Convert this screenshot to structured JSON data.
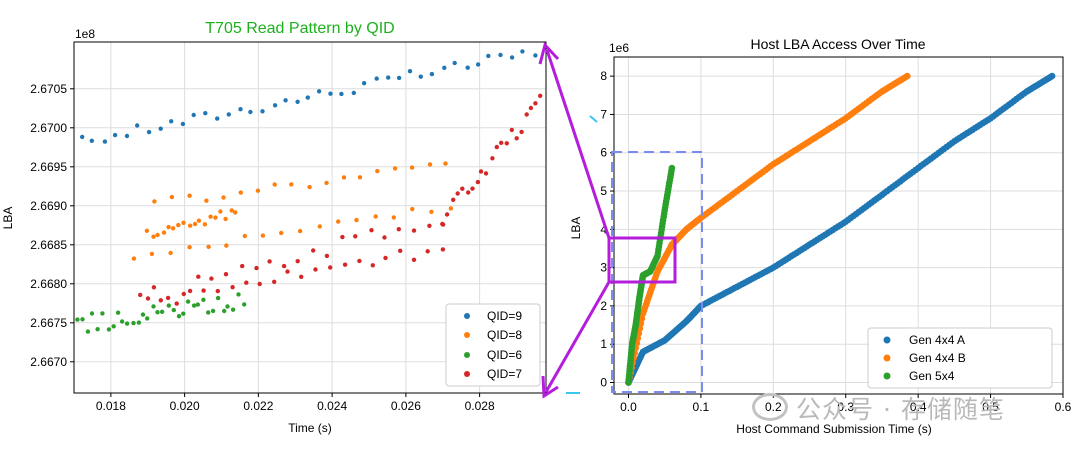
{
  "colors": {
    "blue": "#1f77b4",
    "orange": "#ff7f0e",
    "green": "#2ca02c",
    "red": "#d62728",
    "magenta": "#b51ddc",
    "dashed_box": "#7b8cf0",
    "left_title": "#1db11d"
  },
  "left_chart": {
    "type": "scatter",
    "title": "T705 Read Pattern by QID",
    "xlabel": "Time (s)",
    "ylabel": "LBA",
    "offset_label": "1e8",
    "xlim": [
      0.017,
      0.0298
    ],
    "ylim": [
      266.66,
      267.11
    ],
    "xticks": [
      0.018,
      0.02,
      0.022,
      0.024,
      0.026,
      0.028
    ],
    "xtick_labels": [
      "0.018",
      "0.020",
      "0.022",
      "0.024",
      "0.026",
      "0.028"
    ],
    "yticks": [
      266.7,
      266.75,
      266.8,
      266.85,
      266.9,
      266.95,
      267.0,
      267.05
    ],
    "ytick_labels": [
      "2.6670",
      "2.6675",
      "2.6680",
      "2.6685",
      "2.6690",
      "2.6695",
      "2.6700",
      "2.6705"
    ],
    "grid": true,
    "legend_position": "lower-right",
    "series": [
      {
        "name": "QID=9",
        "color": "blue",
        "segments": [
          [
            0.0172,
            266.982,
            0.0298,
            267.1
          ]
        ],
        "n": 42,
        "jitter": 0.0015
      },
      {
        "name": "QID=8",
        "color": "orange",
        "segments": [
          [
            0.019,
            266.864,
            0.0214,
            266.892
          ],
          [
            0.0192,
            266.903,
            0.0271,
            266.953
          ],
          [
            0.0186,
            266.835,
            0.0272,
            266.898
          ]
        ],
        "n": 18,
        "jitter": 0.0012
      },
      {
        "name": "QID=6",
        "color": "green",
        "segments": [
          [
            0.0171,
            266.748,
            0.0216,
            266.776
          ]
        ],
        "n": 34,
        "jitter": 0.0025
      },
      {
        "name": "QID=7",
        "color": "red",
        "segments": [
          [
            0.019,
            266.778,
            0.027,
            266.842
          ],
          [
            0.0188,
            266.782,
            0.027,
            266.885
          ],
          [
            0.027,
            266.885,
            0.0298,
            267.04
          ]
        ],
        "n": 22,
        "jitter": 0.002
      }
    ]
  },
  "right_chart": {
    "type": "scatter",
    "title": "Host LBA Access Over Time",
    "xlabel": "Host Command Submission Time (s)",
    "ylabel": "LBA",
    "offset_label": "1e6",
    "xlim": [
      -0.02,
      0.6
    ],
    "ylim": [
      -0.3,
      8.5
    ],
    "xticks": [
      0.0,
      0.1,
      0.2,
      0.3,
      0.4,
      0.5,
      0.6
    ],
    "xtick_labels": [
      "0.0",
      "0.1",
      "0.2",
      "0.3",
      "0.4",
      "0.5",
      "0.6"
    ],
    "yticks": [
      0,
      1,
      2,
      3,
      4,
      5,
      6,
      7,
      8
    ],
    "ytick_labels": [
      "0",
      "1",
      "2",
      "3",
      "4",
      "5",
      "6",
      "7",
      "8"
    ],
    "grid": true,
    "legend_position": "lower-right",
    "series": [
      {
        "name": "Gen 4x4 A",
        "color": "blue",
        "x": [
          0.0,
          0.02,
          0.05,
          0.08,
          0.1,
          0.15,
          0.2,
          0.25,
          0.3,
          0.35,
          0.4,
          0.45,
          0.5,
          0.55,
          0.585
        ],
        "y": [
          0.0,
          0.8,
          1.1,
          1.6,
          2.0,
          2.5,
          3.0,
          3.6,
          4.2,
          4.9,
          5.6,
          6.3,
          6.9,
          7.6,
          8.0
        ]
      },
      {
        "name": "Gen 4x4 B",
        "color": "orange",
        "x": [
          0.0,
          0.02,
          0.04,
          0.06,
          0.08,
          0.1,
          0.15,
          0.2,
          0.25,
          0.3,
          0.35,
          0.385
        ],
        "y": [
          0.0,
          1.8,
          2.9,
          3.6,
          4.0,
          4.3,
          5.0,
          5.7,
          6.3,
          6.9,
          7.6,
          8.0
        ]
      },
      {
        "name": "Gen 5x4",
        "color": "green",
        "x": [
          0.0,
          0.005,
          0.01,
          0.015,
          0.02,
          0.03,
          0.04,
          0.05,
          0.06
        ],
        "y": [
          0.0,
          1.0,
          1.5,
          2.2,
          2.8,
          2.9,
          3.3,
          4.5,
          5.6
        ]
      }
    ]
  },
  "watermark": "公众号 · 存储随笔"
}
